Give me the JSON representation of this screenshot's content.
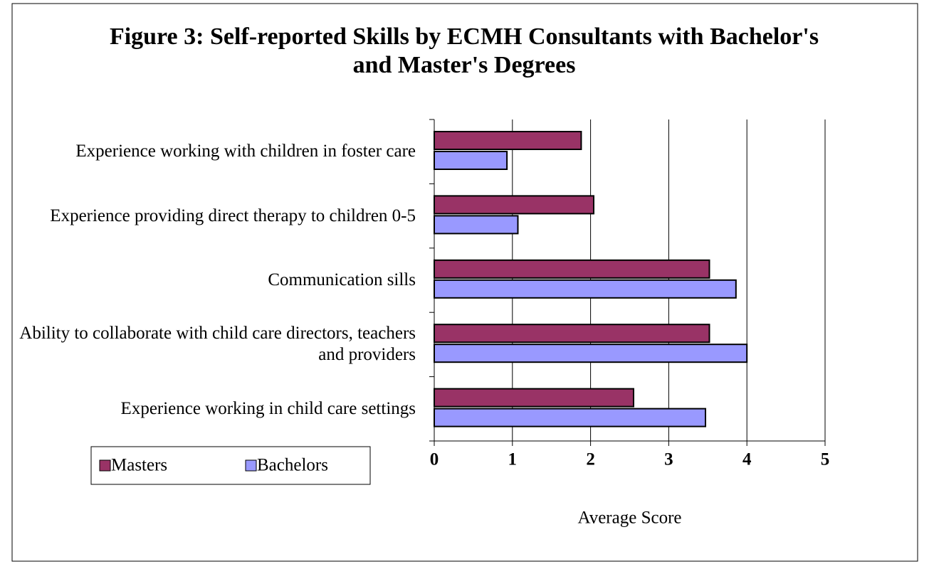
{
  "chart_data": {
    "type": "bar",
    "orientation": "horizontal",
    "title": "Figure 3: Self-reported Skills by ECMH Consultants with Bachelor's and Master's Degrees",
    "categories": [
      "Experience working with children in foster care",
      "Experience providing direct therapy to children 0-5",
      "Communication sills",
      "Ability to collaborate with child care directors, teachers and providers",
      "Experience working in child care settings"
    ],
    "series": [
      {
        "name": "Masters",
        "color": "#993366",
        "values": [
          1.88,
          2.04,
          3.52,
          3.52,
          2.55
        ]
      },
      {
        "name": "Bachelors",
        "color": "#9999ff",
        "values": [
          0.93,
          1.07,
          3.86,
          4.0,
          3.47
        ]
      }
    ],
    "xlabel": "Average Score",
    "xlim": [
      0,
      5
    ],
    "xticks": [
      0,
      1,
      2,
      3,
      4,
      5
    ],
    "grid": true
  }
}
